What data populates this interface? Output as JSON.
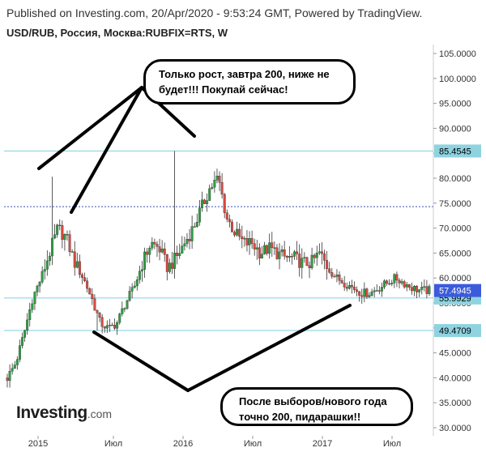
{
  "header": {
    "published": "Published on Investing.com, 20/Apr/2020 - 9:53:24 GMT, Powered by TradingView.",
    "symbol": "USD/RUB, Россия, Москва:RUBFIX=RTS, W"
  },
  "logo": {
    "main": "Investing",
    "domain": ".com"
  },
  "annotations": {
    "top_bubble": [
      "Только рост, завтра 200, ниже не",
      "будет!!! Покупай сейчас!"
    ],
    "bottom_bubble": [
      "После выборов/нового года",
      "точно 200, пидарашки!!"
    ]
  },
  "colors": {
    "bull": "#2e9e44",
    "bear": "#d94a40",
    "wick": "#000000",
    "level_line": "#7fcfe0",
    "level_label_bg": "#8fd3e0",
    "dotted_line": "#3b4fb8",
    "current_label_bg": "#3b5bdb"
  },
  "chart_data": {
    "type": "candlestick",
    "title": "USD/RUB, Россия, Москва:RUBFIX=RTS, W",
    "ylim": [
      29,
      107
    ],
    "y_ticks": [
      "105.0000",
      "100.0000",
      "95.0000",
      "90.0000",
      "85.0000",
      "80.0000",
      "75.0000",
      "70.0000",
      "65.0000",
      "60.0000",
      "55.0000",
      "50.0000",
      "45.0000",
      "40.0000",
      "35.0000",
      "30.0000"
    ],
    "x_ticks": [
      "2015",
      "Июл",
      "2016",
      "Июл",
      "2017",
      "Июл"
    ],
    "levels": [
      {
        "value": 85.4545,
        "label": "85.4545",
        "style": "solid"
      },
      {
        "value": 74.3,
        "label": "",
        "style": "dotted"
      },
      {
        "value": 55.9929,
        "label": "55.9929",
        "style": "solid"
      },
      {
        "value": 49.4709,
        "label": "49.4709",
        "style": "solid"
      }
    ],
    "current": {
      "value": 57.4945,
      "label": "57.4945"
    },
    "series": [
      {
        "name": "USD/RUB",
        "close_path": [
          40,
          43,
          49,
          56,
          60,
          65,
          70,
          68,
          63,
          60,
          56,
          51,
          49.8,
          51,
          55,
          58,
          63,
          67,
          66,
          62,
          64,
          67,
          70,
          74,
          78,
          80,
          72,
          69,
          67,
          67,
          65,
          66,
          65,
          64,
          64,
          63,
          63,
          65,
          62,
          60,
          59,
          58,
          57,
          57,
          58,
          59,
          60,
          59,
          58,
          57.5,
          57.5
        ]
      }
    ]
  }
}
